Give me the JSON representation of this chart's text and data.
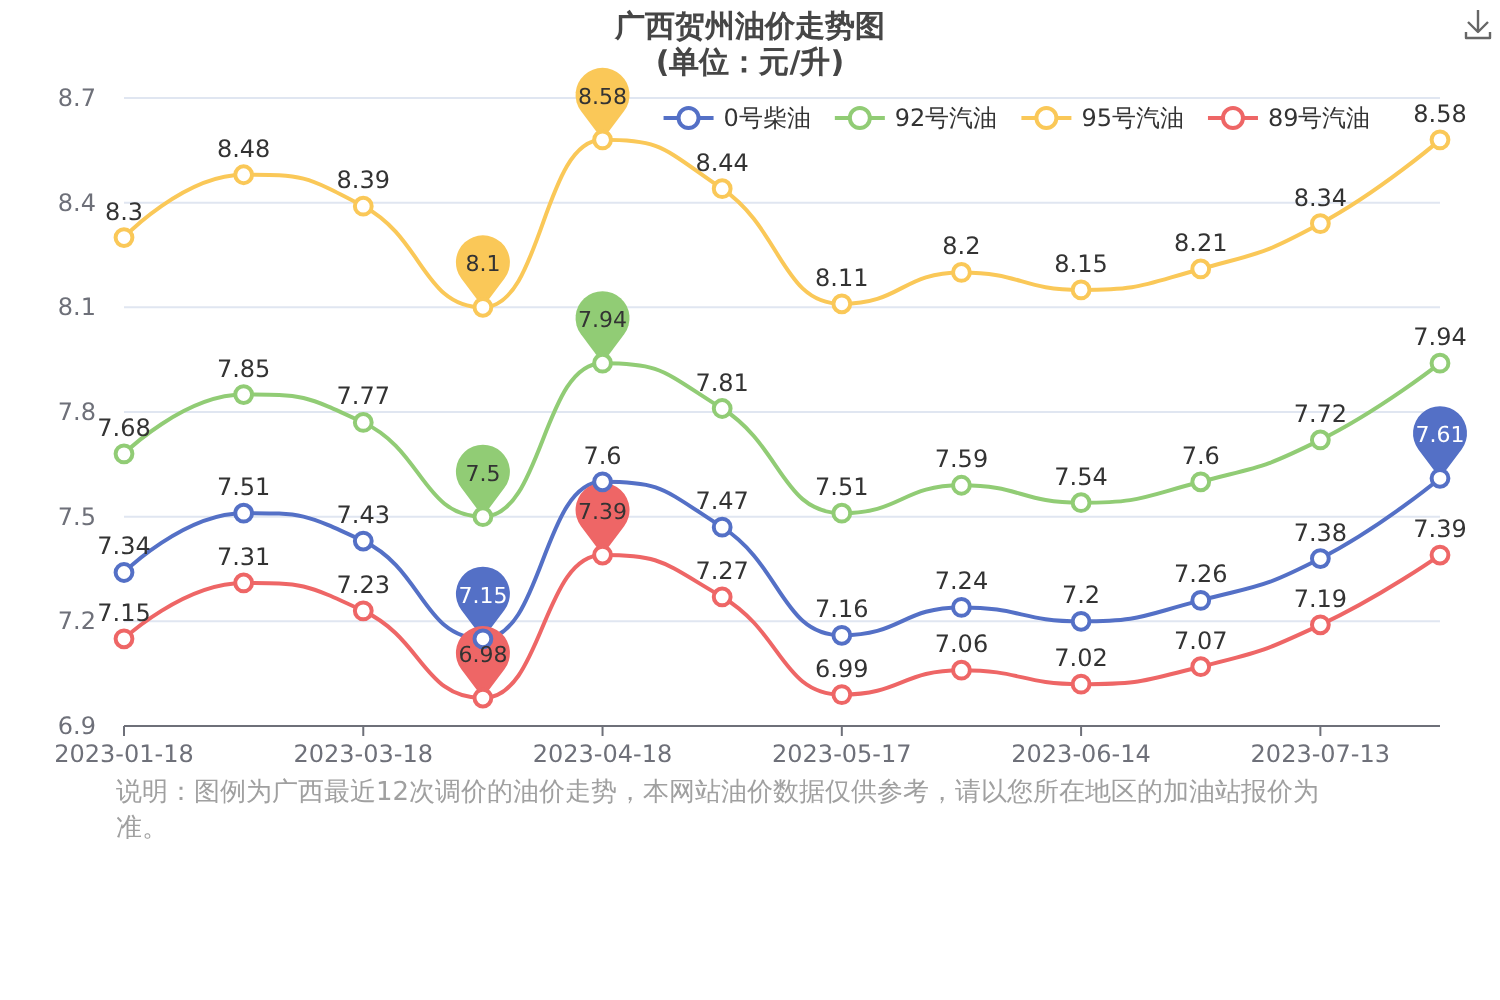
{
  "chart_data": {
    "type": "line",
    "title": "广西贺州油价走势图",
    "subtitle": "(单位：元/升)",
    "categories": [
      "2023-01-18",
      null,
      "2023-03-18",
      null,
      "2023-04-18",
      null,
      "2023-05-17",
      null,
      "2023-06-14",
      null,
      "2023-07-13",
      null
    ],
    "series": [
      {
        "name": "0号柴油",
        "color": "#5470c6",
        "values": [
          7.34,
          7.51,
          7.43,
          7.15,
          7.6,
          7.47,
          7.16,
          7.24,
          7.2,
          7.26,
          7.38,
          7.61
        ],
        "value_labels": [
          "7.34",
          "7.51",
          "7.43",
          null,
          "7.6",
          "7.47",
          "7.16",
          "7.24",
          "7.2",
          "7.26",
          "7.38",
          null
        ]
      },
      {
        "name": "92号汽油",
        "color": "#91cc75",
        "values": [
          7.68,
          7.85,
          7.77,
          7.5,
          7.94,
          7.81,
          7.51,
          7.59,
          7.54,
          7.6,
          7.72,
          7.94
        ],
        "value_labels": [
          "7.68",
          "7.85",
          "7.77",
          null,
          null,
          "7.81",
          "7.51",
          "7.59",
          "7.54",
          "7.6",
          "7.72",
          "7.94"
        ]
      },
      {
        "name": "95号汽油",
        "color": "#fac858",
        "values": [
          8.3,
          8.48,
          8.39,
          8.1,
          8.58,
          8.44,
          8.11,
          8.2,
          8.15,
          8.21,
          8.34,
          8.58
        ],
        "value_labels": [
          "8.3",
          "8.48",
          "8.39",
          null,
          null,
          "8.44",
          "8.11",
          "8.2",
          "8.15",
          "8.21",
          "8.34",
          "8.58"
        ]
      },
      {
        "name": "89号汽油",
        "color": "#ee6666",
        "values": [
          7.15,
          7.31,
          7.23,
          6.98,
          7.39,
          7.27,
          6.99,
          7.06,
          7.02,
          7.07,
          7.19,
          7.39
        ],
        "value_labels": [
          "7.15",
          "7.31",
          "7.23",
          null,
          null,
          "7.27",
          "6.99",
          "7.06",
          "7.02",
          "7.07",
          "7.19",
          "7.39"
        ]
      }
    ],
    "ylim": [
      6.9,
      8.7
    ],
    "yticks": [
      6.9,
      7.2,
      7.5,
      7.8,
      8.1,
      8.4,
      8.7
    ],
    "grid": "y",
    "legend": "top",
    "marker": "circle",
    "annotations": [
      {
        "text": "8.58",
        "x": "2023-04-18",
        "y": 8.58
      },
      {
        "text": "8.1",
        "y": 8.1
      },
      {
        "text": "7.94",
        "x": "2023-04-18",
        "y": 7.94
      },
      {
        "text": "7.5",
        "y": 7.5
      },
      {
        "text": "7.61",
        "y": 7.61
      },
      {
        "text": "7.15",
        "y": 7.15
      },
      {
        "text": "7.39",
        "x": "2023-04-18",
        "y": 7.39
      },
      {
        "text": "6.98",
        "y": 6.98
      },
      "说明：图例为广西最近12次调价的油价走势，本网站油价数据仅供参考，请以您所在地区的加油站报价为准。"
    ]
  }
}
